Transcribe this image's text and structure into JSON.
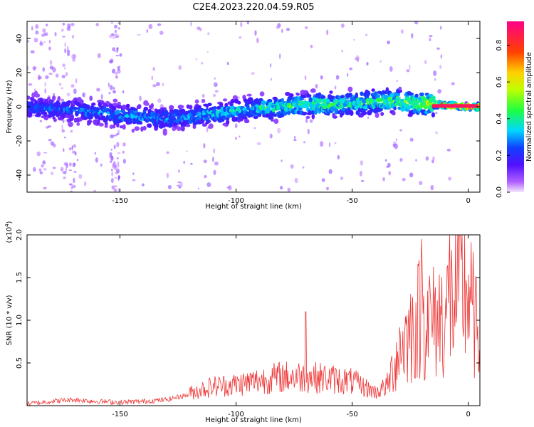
{
  "title": "C2E4.2023.220.04.59.R05",
  "chart_data": [
    {
      "type": "heatmap",
      "xlabel": "Height of straight line (km)",
      "ylabel": "Frequency (Hz)",
      "xlim": [
        -190,
        5
      ],
      "ylim": [
        -50,
        50
      ],
      "xticks": [
        -150,
        -100,
        -50,
        0
      ],
      "yticks": [
        -40,
        -20,
        0,
        20,
        40
      ],
      "colorbar": {
        "label": "Normalized spectral amplitude",
        "range": [
          0.0,
          0.93
        ],
        "ticks": [
          0.0,
          0.2,
          0.4,
          0.6,
          0.8
        ]
      },
      "ridge": {
        "x": [
          -190,
          -170,
          -150,
          -130,
          -110,
          -90,
          -70,
          -50,
          -40,
          -30,
          -20,
          -10,
          0,
          4
        ],
        "center_hz": [
          0,
          -2,
          -5,
          -7,
          -4,
          -1,
          1,
          2,
          3,
          3,
          2,
          1,
          0,
          0
        ],
        "peak_amplitude": [
          0.28,
          0.3,
          0.35,
          0.35,
          0.38,
          0.45,
          0.5,
          0.5,
          0.52,
          0.55,
          0.6,
          0.9,
          0.9,
          0.9
        ]
      }
    },
    {
      "type": "line",
      "xlabel": "Height of straight line (km)",
      "ylabel": "SNR (10 * v/v)",
      "y_multiplier_label": "(x10",
      "y_multiplier_exp": "4",
      "xlim": [
        -190,
        5
      ],
      "ylim": [
        0,
        2.0
      ],
      "xticks": [
        -150,
        -100,
        -50,
        0
      ],
      "yticks": [
        0.5,
        1.0,
        1.5,
        2.0
      ],
      "series": [
        {
          "color": "#ee3333",
          "x": [
            -190,
            -180,
            -170,
            -160,
            -150,
            -140,
            -130,
            -120,
            -110,
            -100,
            -90,
            -80,
            -70,
            -60,
            -50,
            -40,
            -35,
            -30,
            -25,
            -20,
            -15,
            -10,
            -5,
            0,
            5
          ],
          "y": [
            0.02,
            0.05,
            0.07,
            0.05,
            0.04,
            0.05,
            0.07,
            0.13,
            0.2,
            0.22,
            0.26,
            0.3,
            0.3,
            0.28,
            0.25,
            0.14,
            0.2,
            0.6,
            0.8,
            1.0,
            0.9,
            1.0,
            1.2,
            1.25,
            0.6
          ],
          "peaks": [
            {
              "x": -70,
              "y": 1.1
            },
            {
              "x": -20,
              "y": 1.95
            },
            {
              "x": -8,
              "y": 2.0
            }
          ]
        }
      ]
    }
  ]
}
